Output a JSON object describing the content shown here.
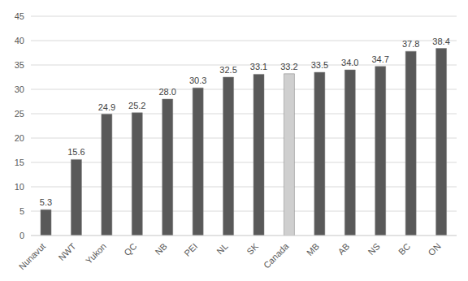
{
  "chart_data": {
    "type": "bar",
    "categories": [
      "Nunavut",
      "NWT",
      "Yukon",
      "QC",
      "NB",
      "PEI",
      "NL",
      "SK",
      "Canada",
      "MB",
      "AB",
      "NS",
      "BC",
      "ON"
    ],
    "values": [
      5.3,
      15.6,
      24.9,
      25.2,
      28.0,
      30.3,
      32.5,
      33.1,
      33.2,
      33.5,
      34.0,
      34.7,
      37.8,
      38.4
    ],
    "value_labels": [
      "5.3",
      "15.6",
      "24.9",
      "25.2",
      "28.0",
      "30.3",
      "32.5",
      "33.1",
      "33.2",
      "33.5",
      "34.0",
      "34.7",
      "37.8",
      "38.4"
    ],
    "colors": [
      "#595959",
      "#595959",
      "#595959",
      "#595959",
      "#595959",
      "#595959",
      "#595959",
      "#595959",
      "#cfcfcf",
      "#595959",
      "#595959",
      "#595959",
      "#595959",
      "#595959"
    ],
    "ylim": [
      0,
      45
    ],
    "yticks": [
      0,
      5,
      10,
      15,
      20,
      25,
      30,
      35,
      40,
      45
    ],
    "grid": true,
    "data_labels": true
  }
}
